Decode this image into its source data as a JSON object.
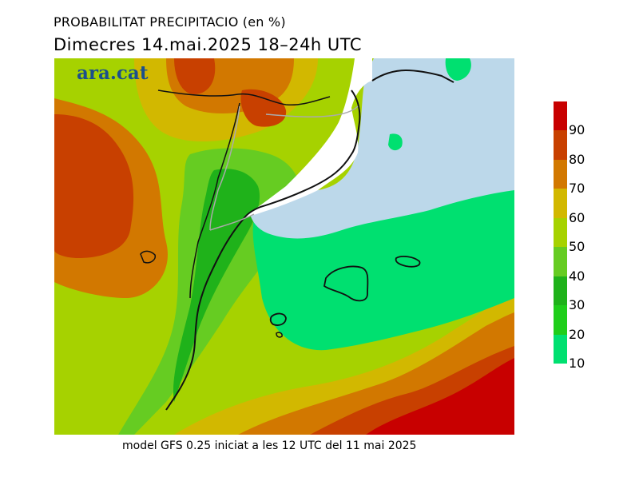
{
  "title": "PROBABILITAT PRECIPITACIO (en %)",
  "subtitle": "Dimecres   14.mai.2025  18–24h UTC",
  "brand": "ara.cat",
  "footer": "model GFS 0.25 iniciat a les 12 UTC del 11 mai 2025",
  "legend": {
    "ticks": [
      "90",
      "80",
      "70",
      "60",
      "50",
      "40",
      "30",
      "20",
      "10"
    ],
    "bands": [
      {
        "from": 10,
        "to": 20,
        "color": "#00e070"
      },
      {
        "from": 20,
        "to": 30,
        "color": "#1fce1a"
      },
      {
        "from": 30,
        "to": 40,
        "color": "#1fb21a"
      },
      {
        "from": 40,
        "to": 50,
        "color": "#66cc22"
      },
      {
        "from": 50,
        "to": 60,
        "color": "#a6d200"
      },
      {
        "from": 60,
        "to": 70,
        "color": "#d2b800"
      },
      {
        "from": 70,
        "to": 80,
        "color": "#d27800"
      },
      {
        "from": 80,
        "to": 90,
        "color": "#c84000"
      },
      {
        "from": 90,
        "to": 100,
        "color": "#c80000"
      }
    ]
  },
  "colors": {
    "sea": "#bcd8ea",
    "no_data": "#ffffff",
    "coast": "#111111",
    "borders": "#aaaaaa"
  }
}
